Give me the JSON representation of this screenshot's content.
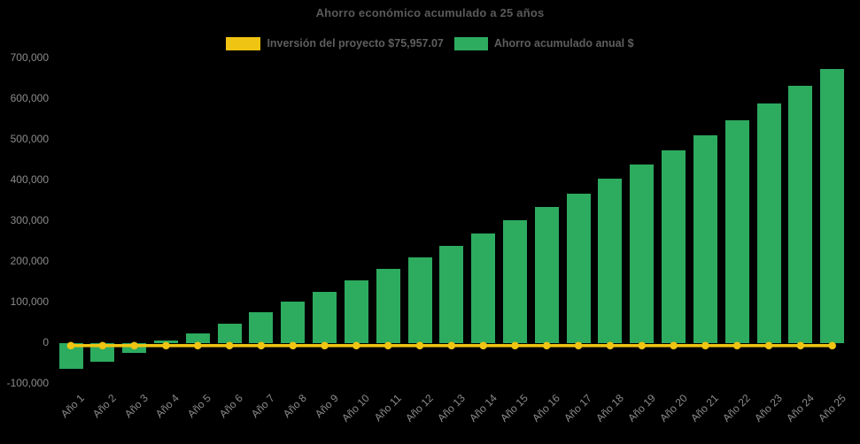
{
  "chart_data": {
    "type": "bar",
    "title": "Ahorro económico acumulado a 25 años",
    "background_color": "#000000",
    "grid": false,
    "legend_position": "top",
    "xlabel": "",
    "ylabel": "",
    "ylim": [
      -100000,
      700000
    ],
    "ytick_step": 100000,
    "ytick_labels": [
      "-100,000",
      "0",
      "100,000",
      "200,000",
      "300,000",
      "400,000",
      "500,000",
      "600,000",
      "700,000"
    ],
    "categories": [
      "Año 1",
      "Año 2",
      "Año 3",
      "Año 4",
      "Año 5",
      "Año 6",
      "Año 7",
      "Año 8",
      "Año 9",
      "Año 10",
      "Año 11",
      "Año 12",
      "Año 13",
      "Año 14",
      "Año 15",
      "Año 16",
      "Año 17",
      "Año 18",
      "Año 19",
      "Año 20",
      "Año 21",
      "Año 22",
      "Año 23",
      "Año 24",
      "Año 25"
    ],
    "series": [
      {
        "name": "Inversión del proyecto $75,957.07",
        "type": "line",
        "color": "#F0C412",
        "marker": "circle",
        "values": [
          0,
          0,
          0,
          0,
          0,
          0,
          0,
          0,
          0,
          0,
          0,
          0,
          0,
          0,
          0,
          0,
          0,
          0,
          0,
          0,
          0,
          0,
          0,
          0,
          0
        ]
      },
      {
        "name": "Ahorro acumulado anual $",
        "type": "bar",
        "color": "#2DAB5F",
        "values": [
          -64000,
          -47000,
          -25000,
          5000,
          24000,
          48000,
          75000,
          101000,
          126000,
          154000,
          182000,
          210000,
          239000,
          268000,
          302000,
          334000,
          367000,
          402000,
          437000,
          472000,
          509000,
          546000,
          588000,
          630000,
          671000
        ]
      }
    ]
  }
}
